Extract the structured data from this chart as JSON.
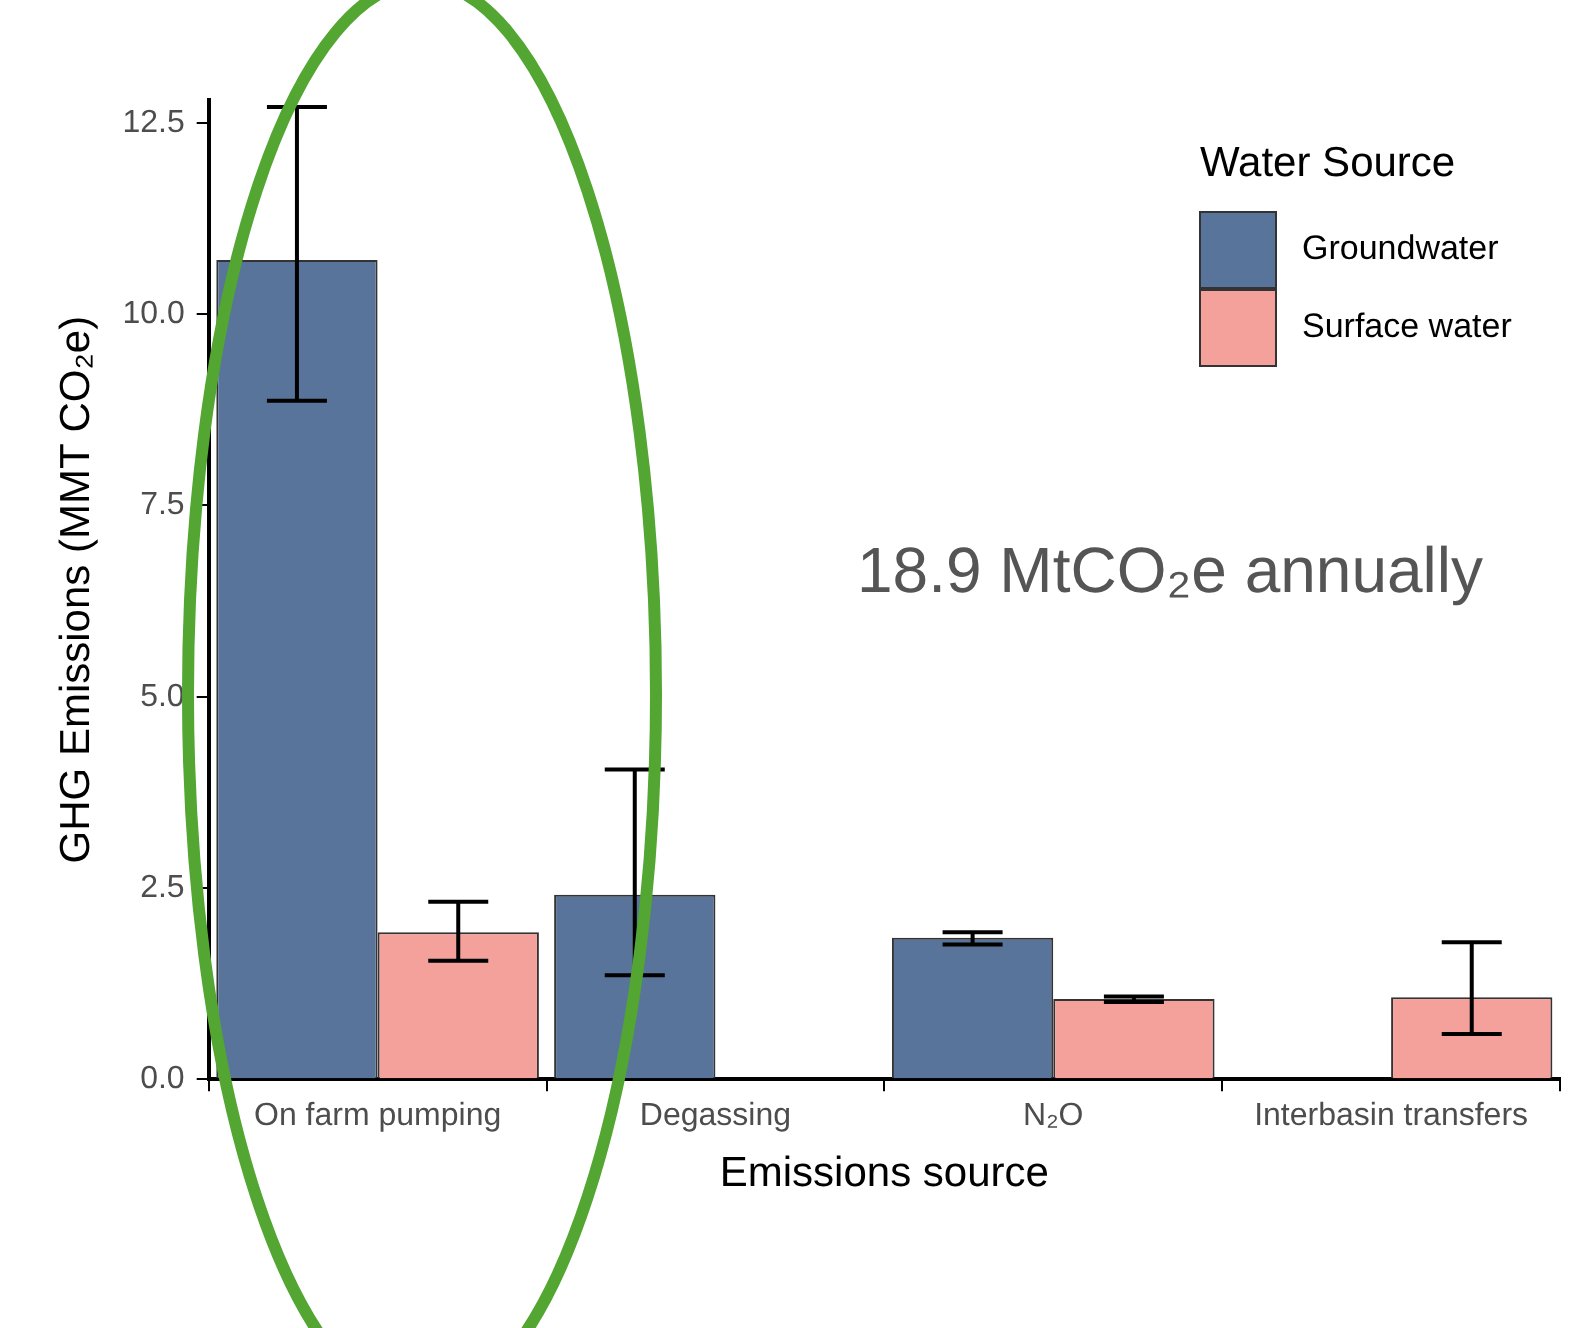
{
  "chart_data": {
    "type": "bar",
    "xlabel": "Emissions source",
    "ylabel": "GHG Emissions (MMT CO₂e)",
    "legend_title": "Water Source",
    "legend": "top right",
    "grid": false,
    "categories": [
      "On farm pumping",
      "Degassing",
      "N₂O",
      "Interbasin transfers"
    ],
    "series": [
      {
        "name": "Groundwater",
        "color": "#58749a",
        "values": [
          10.71,
          2.41,
          1.85,
          null
        ],
        "errors": [
          [
            8.87,
            12.71
          ],
          [
            1.36,
            4.05
          ],
          [
            1.76,
            1.92
          ],
          null
        ]
      },
      {
        "name": "Surface water",
        "color": "#f4a19c",
        "values": [
          1.92,
          null,
          1.05,
          1.07
        ],
        "errors": [
          [
            1.55,
            2.32
          ],
          null,
          [
            1.01,
            1.08
          ],
          [
            0.59,
            1.79
          ]
        ]
      }
    ],
    "ylim": [
      0,
      12.8
    ],
    "yticks": [
      {
        "value": 0,
        "label": "0.0"
      },
      {
        "value": 2.5,
        "label": "2.5"
      },
      {
        "value": 5,
        "label": "5.0"
      },
      {
        "value": 7.5,
        "label": "7.5"
      },
      {
        "value": 10,
        "label": "10.0"
      },
      {
        "value": 12.5,
        "label": "12.5"
      }
    ],
    "annotations": [
      "18.9 MtCO₂e annually"
    ]
  }
}
